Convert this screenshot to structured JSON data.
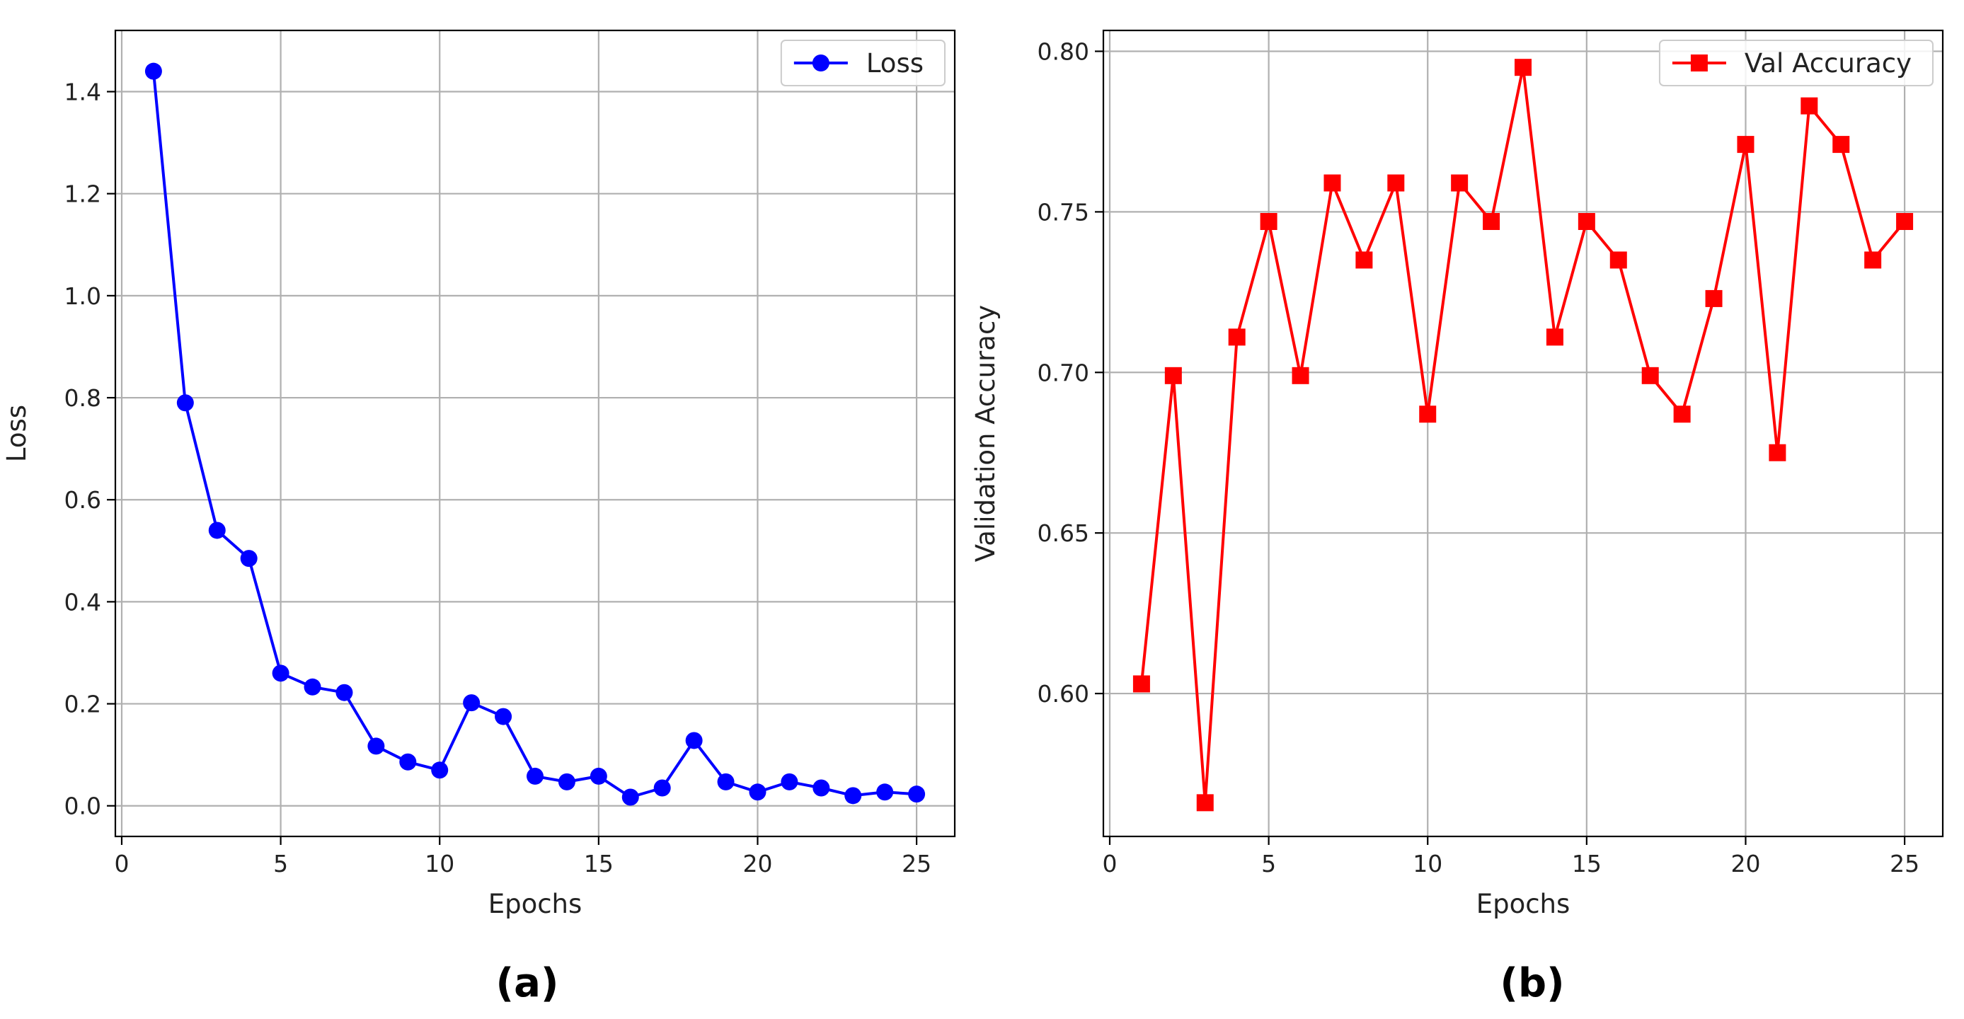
{
  "chart_data": [
    {
      "type": "line",
      "panel_label": "(a)",
      "xlabel": "Epochs",
      "ylabel": "Loss",
      "xlim": [
        -0.2,
        26.2
      ],
      "ylim": [
        -0.06,
        1.52
      ],
      "xticks": [
        0,
        5,
        10,
        15,
        20,
        25
      ],
      "yticks": [
        0.0,
        0.2,
        0.4,
        0.6,
        0.8,
        1.0,
        1.2,
        1.4
      ],
      "ytick_decimals": 1,
      "grid": true,
      "legend_position": "top-right",
      "color": "#0000ff",
      "marker": "circle",
      "series": [
        {
          "name": "Loss",
          "x": [
            1,
            2,
            3,
            4,
            5,
            6,
            7,
            8,
            9,
            10,
            11,
            12,
            13,
            14,
            15,
            16,
            17,
            18,
            19,
            20,
            21,
            22,
            23,
            24,
            25
          ],
          "y": [
            1.44,
            0.79,
            0.54,
            0.485,
            0.26,
            0.233,
            0.222,
            0.117,
            0.086,
            0.07,
            0.202,
            0.175,
            0.058,
            0.047,
            0.058,
            0.017,
            0.035,
            0.128,
            0.047,
            0.027,
            0.047,
            0.035,
            0.02,
            0.027,
            0.023
          ]
        }
      ]
    },
    {
      "type": "line",
      "panel_label": "(b)",
      "xlabel": "Epochs",
      "ylabel": "Validation Accuracy",
      "xlim": [
        -0.2,
        26.2
      ],
      "ylim": [
        0.5555,
        0.8065
      ],
      "xticks": [
        0,
        5,
        10,
        15,
        20,
        25
      ],
      "yticks": [
        0.6,
        0.65,
        0.7,
        0.75,
        0.8
      ],
      "ytick_decimals": 2,
      "grid": true,
      "legend_position": "top-right",
      "color": "#ff0000",
      "marker": "square",
      "series": [
        {
          "name": "Val Accuracy",
          "x": [
            1,
            2,
            3,
            4,
            5,
            6,
            7,
            8,
            9,
            10,
            11,
            12,
            13,
            14,
            15,
            16,
            17,
            18,
            19,
            20,
            21,
            22,
            23,
            24,
            25
          ],
          "y": [
            0.603,
            0.699,
            0.566,
            0.711,
            0.747,
            0.699,
            0.759,
            0.735,
            0.759,
            0.687,
            0.759,
            0.747,
            0.795,
            0.711,
            0.747,
            0.735,
            0.699,
            0.687,
            0.723,
            0.771,
            0.675,
            0.783,
            0.771,
            0.735,
            0.747
          ]
        }
      ]
    }
  ]
}
